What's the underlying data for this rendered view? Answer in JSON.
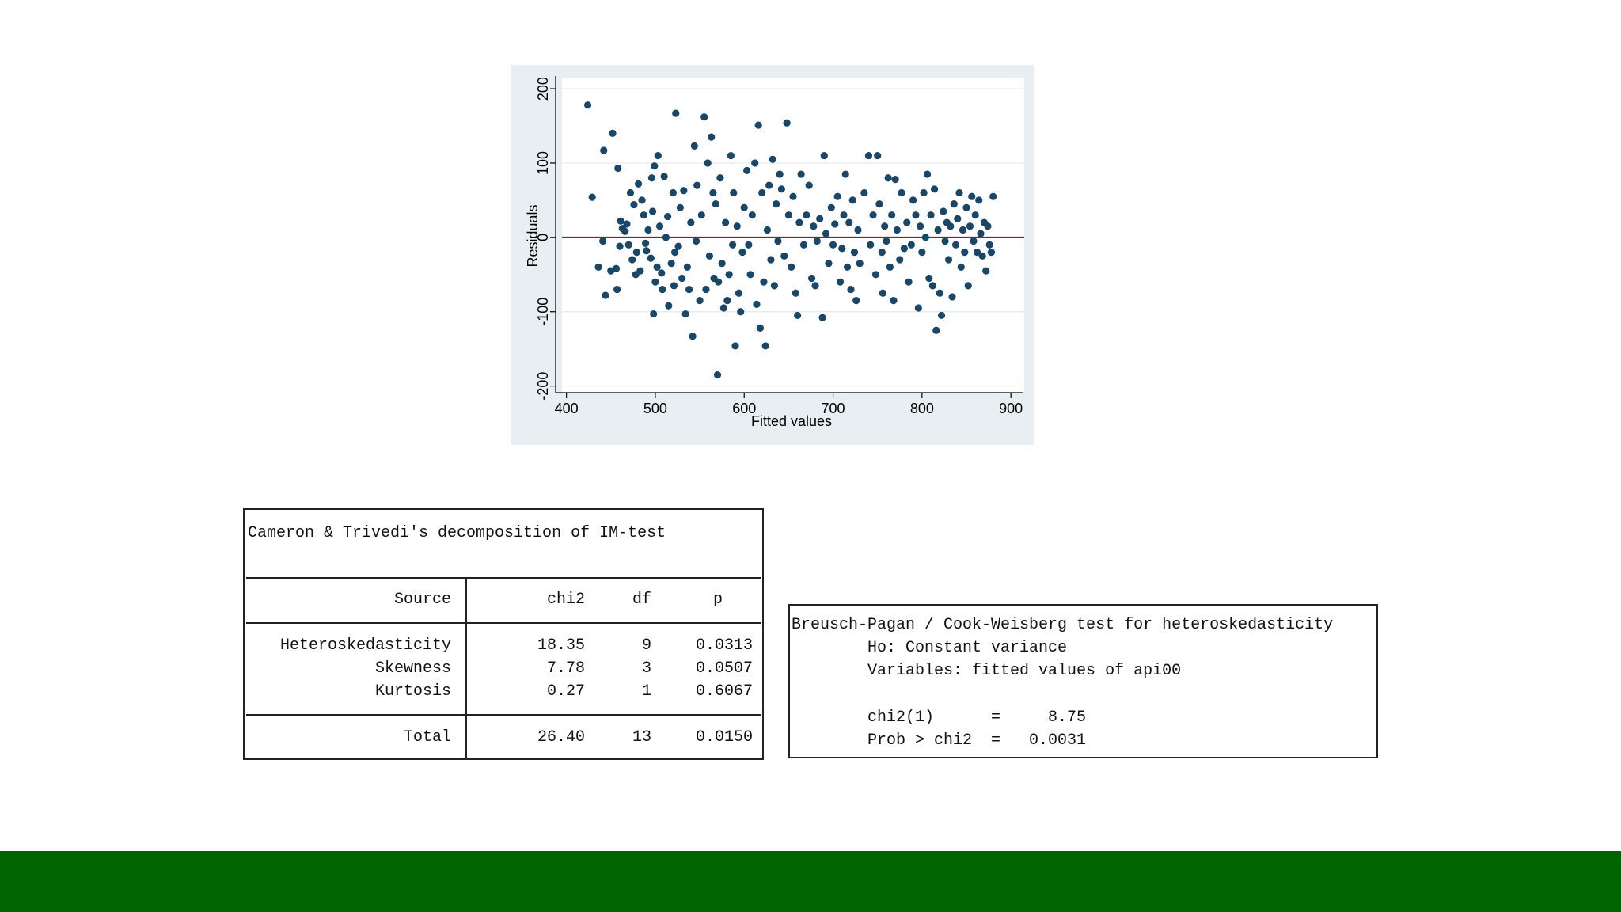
{
  "chart_data": {
    "type": "scatter",
    "xlabel": "Fitted values",
    "ylabel": "Residuals",
    "xlim": [
      395,
      915
    ],
    "ylim": [
      -210,
      215
    ],
    "xticks": [
      400,
      500,
      600,
      700,
      800,
      900
    ],
    "yticks": [
      -200,
      -100,
      0,
      100,
      200
    ],
    "grid": true,
    "reference_line": {
      "y": 0,
      "color": "#8b1a3a"
    },
    "marker_color": "#1a4767",
    "points": [
      [
        424,
        178
      ],
      [
        429,
        54
      ],
      [
        436,
        -40
      ],
      [
        441,
        -5
      ],
      [
        442,
        117
      ],
      [
        444,
        -78
      ],
      [
        450,
        -45
      ],
      [
        452,
        140
      ],
      [
        456,
        -42
      ],
      [
        457,
        -70
      ],
      [
        458,
        93
      ],
      [
        460,
        -12
      ],
      [
        461,
        22
      ],
      [
        463,
        12
      ],
      [
        466,
        8
      ],
      [
        468,
        18
      ],
      [
        470,
        -10
      ],
      [
        472,
        60
      ],
      [
        474,
        -30
      ],
      [
        476,
        44
      ],
      [
        478,
        -50
      ],
      [
        479,
        -20
      ],
      [
        481,
        72
      ],
      [
        483,
        -45
      ],
      [
        485,
        50
      ],
      [
        487,
        30
      ],
      [
        489,
        -8
      ],
      [
        490,
        -18
      ],
      [
        492,
        10
      ],
      [
        495,
        -28
      ],
      [
        496,
        80
      ],
      [
        497,
        35
      ],
      [
        498,
        -103
      ],
      [
        499,
        96
      ],
      [
        500,
        -60
      ],
      [
        502,
        -40
      ],
      [
        503,
        110
      ],
      [
        505,
        15
      ],
      [
        507,
        -48
      ],
      [
        508,
        -70
      ],
      [
        510,
        82
      ],
      [
        512,
        0
      ],
      [
        514,
        28
      ],
      [
        515,
        -92
      ],
      [
        518,
        -35
      ],
      [
        520,
        60
      ],
      [
        521,
        -65
      ],
      [
        522,
        -20
      ],
      [
        523,
        167
      ],
      [
        526,
        -12
      ],
      [
        528,
        40
      ],
      [
        530,
        -55
      ],
      [
        532,
        63
      ],
      [
        534,
        -103
      ],
      [
        536,
        -40
      ],
      [
        538,
        -70
      ],
      [
        540,
        20
      ],
      [
        542,
        -133
      ],
      [
        544,
        123
      ],
      [
        546,
        -5
      ],
      [
        547,
        70
      ],
      [
        550,
        -85
      ],
      [
        552,
        30
      ],
      [
        555,
        162
      ],
      [
        557,
        -70
      ],
      [
        559,
        100
      ],
      [
        561,
        -25
      ],
      [
        563,
        135
      ],
      [
        565,
        60
      ],
      [
        566,
        -55
      ],
      [
        568,
        45
      ],
      [
        570,
        -185
      ],
      [
        571,
        -60
      ],
      [
        573,
        80
      ],
      [
        575,
        -35
      ],
      [
        577,
        -95
      ],
      [
        579,
        20
      ],
      [
        581,
        -85
      ],
      [
        583,
        -50
      ],
      [
        585,
        110
      ],
      [
        587,
        -10
      ],
      [
        588,
        60
      ],
      [
        590,
        -146
      ],
      [
        592,
        15
      ],
      [
        594,
        -75
      ],
      [
        596,
        -100
      ],
      [
        598,
        -20
      ],
      [
        600,
        40
      ],
      [
        603,
        90
      ],
      [
        605,
        -10
      ],
      [
        607,
        -50
      ],
      [
        609,
        30
      ],
      [
        612,
        100
      ],
      [
        614,
        -90
      ],
      [
        616,
        151
      ],
      [
        618,
        -122
      ],
      [
        620,
        60
      ],
      [
        622,
        -60
      ],
      [
        624,
        -146
      ],
      [
        626,
        10
      ],
      [
        628,
        70
      ],
      [
        630,
        -30
      ],
      [
        632,
        105
      ],
      [
        634,
        -65
      ],
      [
        636,
        45
      ],
      [
        638,
        -5
      ],
      [
        640,
        85
      ],
      [
        642,
        65
      ],
      [
        645,
        -25
      ],
      [
        648,
        154
      ],
      [
        650,
        30
      ],
      [
        653,
        -40
      ],
      [
        655,
        55
      ],
      [
        658,
        -75
      ],
      [
        660,
        -105
      ],
      [
        662,
        20
      ],
      [
        664,
        85
      ],
      [
        667,
        -10
      ],
      [
        670,
        30
      ],
      [
        673,
        70
      ],
      [
        676,
        -55
      ],
      [
        678,
        15
      ],
      [
        680,
        -65
      ],
      [
        682,
        -5
      ],
      [
        685,
        25
      ],
      [
        688,
        -108
      ],
      [
        690,
        110
      ],
      [
        692,
        5
      ],
      [
        695,
        -35
      ],
      [
        698,
        40
      ],
      [
        700,
        -10
      ],
      [
        702,
        18
      ],
      [
        705,
        55
      ],
      [
        708,
        -60
      ],
      [
        710,
        -15
      ],
      [
        712,
        30
      ],
      [
        714,
        85
      ],
      [
        716,
        -40
      ],
      [
        718,
        20
      ],
      [
        720,
        -70
      ],
      [
        722,
        50
      ],
      [
        724,
        -20
      ],
      [
        726,
        -85
      ],
      [
        728,
        10
      ],
      [
        730,
        -35
      ],
      [
        735,
        60
      ],
      [
        740,
        110
      ],
      [
        742,
        -10
      ],
      [
        745,
        30
      ],
      [
        748,
        -50
      ],
      [
        750,
        110
      ],
      [
        752,
        45
      ],
      [
        755,
        -20
      ],
      [
        756,
        -75
      ],
      [
        758,
        15
      ],
      [
        760,
        -5
      ],
      [
        762,
        80
      ],
      [
        764,
        -40
      ],
      [
        766,
        30
      ],
      [
        768,
        -85
      ],
      [
        770,
        78
      ],
      [
        772,
        10
      ],
      [
        775,
        -30
      ],
      [
        777,
        60
      ],
      [
        780,
        -15
      ],
      [
        783,
        20
      ],
      [
        785,
        -60
      ],
      [
        788,
        -10
      ],
      [
        790,
        50
      ],
      [
        793,
        30
      ],
      [
        796,
        -95
      ],
      [
        798,
        15
      ],
      [
        800,
        -20
      ],
      [
        802,
        60
      ],
      [
        804,
        0
      ],
      [
        806,
        85
      ],
      [
        808,
        -55
      ],
      [
        810,
        30
      ],
      [
        812,
        -65
      ],
      [
        814,
        65
      ],
      [
        816,
        -125
      ],
      [
        818,
        10
      ],
      [
        820,
        -75
      ],
      [
        822,
        -105
      ],
      [
        824,
        35
      ],
      [
        826,
        -5
      ],
      [
        828,
        20
      ],
      [
        830,
        -30
      ],
      [
        832,
        15
      ],
      [
        834,
        -80
      ],
      [
        836,
        45
      ],
      [
        838,
        -10
      ],
      [
        840,
        25
      ],
      [
        842,
        60
      ],
      [
        844,
        -40
      ],
      [
        846,
        10
      ],
      [
        848,
        -20
      ],
      [
        850,
        40
      ],
      [
        852,
        -65
      ],
      [
        854,
        15
      ],
      [
        856,
        55
      ],
      [
        858,
        -5
      ],
      [
        860,
        30
      ],
      [
        862,
        -20
      ],
      [
        864,
        50
      ],
      [
        866,
        5
      ],
      [
        868,
        -25
      ],
      [
        870,
        20
      ],
      [
        872,
        -45
      ],
      [
        874,
        15
      ],
      [
        876,
        -10
      ],
      [
        878,
        -20
      ],
      [
        880,
        55
      ]
    ]
  },
  "im_test": {
    "title": "Cameron & Trivedi's decomposition of IM-test",
    "headers": {
      "source": "Source",
      "chi2": "chi2",
      "df": "df",
      "p": "p"
    },
    "rows": [
      {
        "source": "Heteroskedasticity",
        "chi2": "18.35",
        "df": "9",
        "p": "0.0313"
      },
      {
        "source": "Skewness",
        "chi2": "7.78",
        "df": "3",
        "p": "0.0507"
      },
      {
        "source": "Kurtosis",
        "chi2": "0.27",
        "df": "1",
        "p": "0.6067"
      }
    ],
    "total": {
      "source": "Total",
      "chi2": "26.40",
      "df": "13",
      "p": "0.0150"
    }
  },
  "bp_test": {
    "line1": "Breusch-Pagan / Cook-Weisberg test for heteroskedasticity",
    "line2": "        Ho: Constant variance",
    "line3": "        Variables: fitted values of api00",
    "line4": "        chi2(1)      =     8.75",
    "line5": "        Prob > chi2  =   0.0031"
  },
  "colors": {
    "footer": "#006400",
    "panel": "#e8eff2"
  }
}
